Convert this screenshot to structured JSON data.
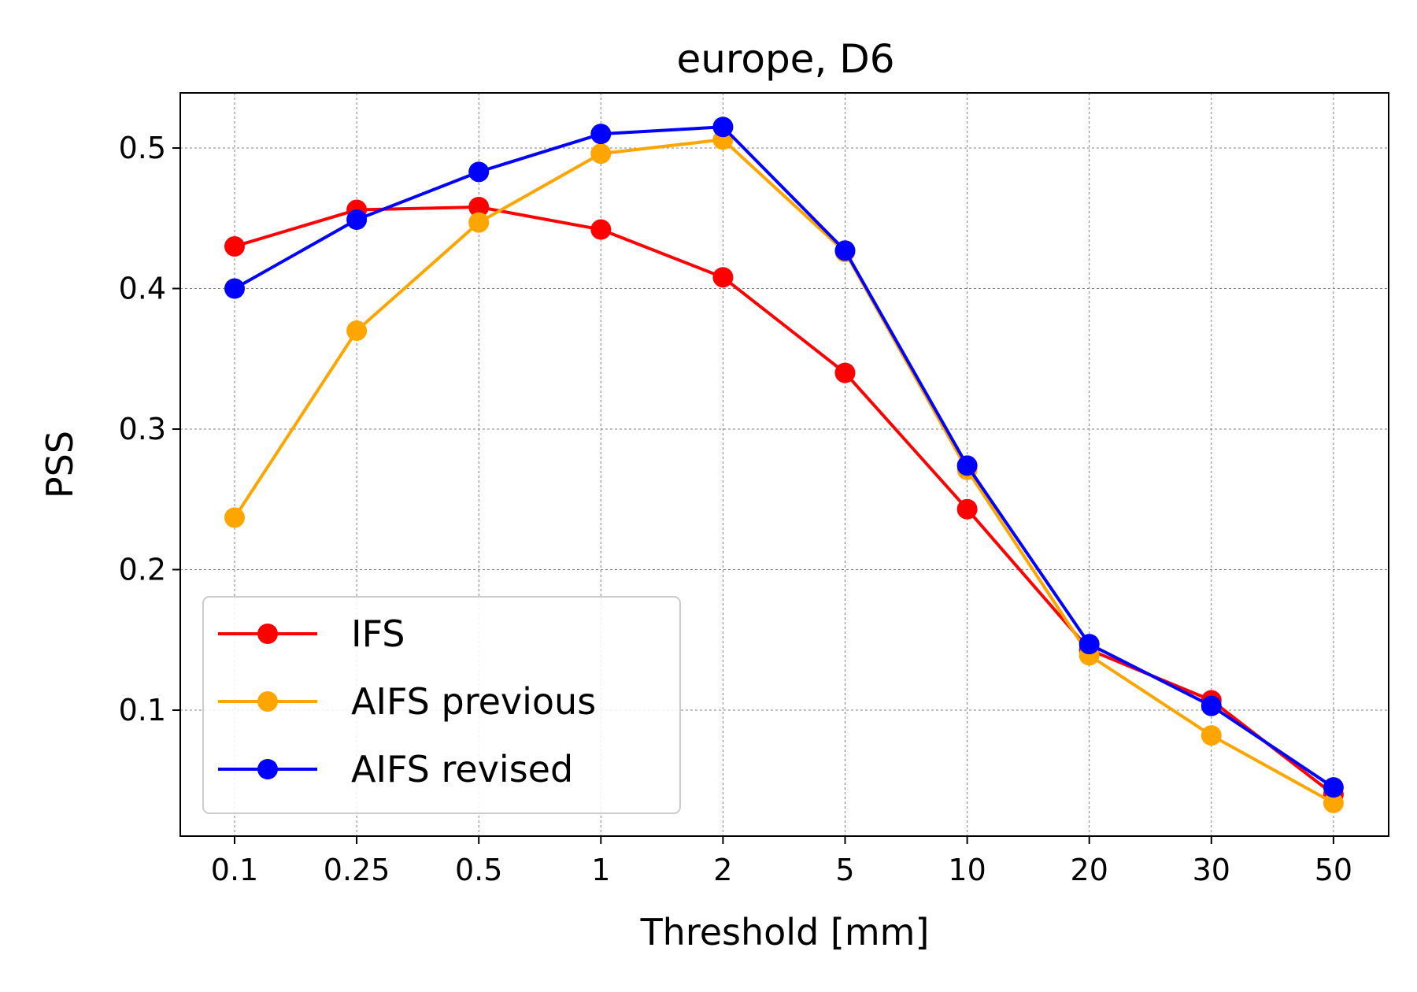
{
  "chart_data": {
    "type": "line",
    "title": "europe, D6",
    "xlabel": "Threshold [mm]",
    "ylabel": "PSS",
    "categories": [
      "0.1",
      "0.25",
      "0.5",
      "1",
      "2",
      "5",
      "10",
      "20",
      "30",
      "50"
    ],
    "ylim": [
      0.01,
      0.54
    ],
    "yticks": [
      "0.1",
      "0.2",
      "0.3",
      "0.4",
      "0.5"
    ],
    "grid": true,
    "legend_position": "lower-left",
    "series": [
      {
        "name": "IFS",
        "color": "#ff0000",
        "values": [
          0.43,
          0.456,
          0.458,
          0.442,
          0.408,
          0.34,
          0.243,
          0.143,
          0.107,
          0.04
        ]
      },
      {
        "name": "AIFS previous",
        "color": "#ffa500",
        "values": [
          0.237,
          0.37,
          0.447,
          0.496,
          0.506,
          0.426,
          0.271,
          0.139,
          0.082,
          0.034
        ]
      },
      {
        "name": "AIFS revised",
        "color": "#0000ff",
        "values": [
          0.4,
          0.449,
          0.483,
          0.51,
          0.515,
          0.427,
          0.274,
          0.147,
          0.103,
          0.045
        ]
      }
    ]
  }
}
